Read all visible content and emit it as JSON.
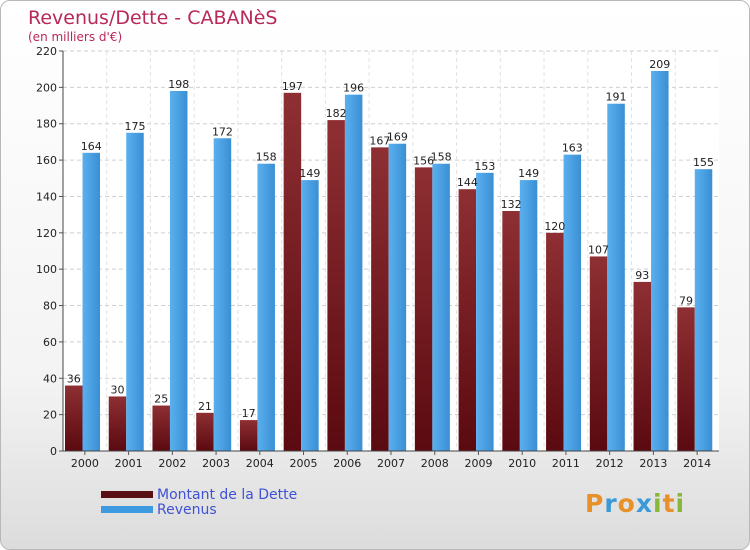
{
  "header": {
    "title": "Revenus/Dette - CABANèS",
    "subtitle": "(en milliers d'€)"
  },
  "chart_data": {
    "type": "bar",
    "categories": [
      "2000",
      "2001",
      "2002",
      "2003",
      "2004",
      "2005",
      "2006",
      "2007",
      "2008",
      "2009",
      "2010",
      "2011",
      "2012",
      "2013",
      "2014"
    ],
    "series": [
      {
        "name": "Montant de la Dette",
        "color": "#7a1e22",
        "values": [
          36,
          30,
          25,
          21,
          17,
          197,
          182,
          167,
          156,
          144,
          132,
          120,
          107,
          93,
          79
        ]
      },
      {
        "name": "Revenus",
        "color": "#3d9ae0",
        "values": [
          164,
          175,
          198,
          172,
          158,
          149,
          196,
          169,
          158,
          153,
          149,
          163,
          191,
          209,
          155
        ]
      }
    ],
    "ylim": [
      0,
      220
    ],
    "yticks": [
      "0",
      "20",
      "40",
      "60",
      "80",
      "100",
      "120",
      "140",
      "160",
      "180",
      "200",
      "220"
    ],
    "grid": true,
    "legend_position": "bottom-left"
  },
  "legend": {
    "items": [
      {
        "label": "Montant de la Dette",
        "color": "#5a0f14"
      },
      {
        "label": "Revenus",
        "color": "#3d9ae0"
      }
    ]
  },
  "logo": {
    "text": "Proxiti",
    "letters": [
      "P",
      "r",
      "o",
      "x",
      "i",
      "t",
      "i"
    ],
    "colors": [
      "#e8902a",
      "#3a9ad8",
      "#e8902a",
      "#3a9ad8",
      "#88b83a",
      "#e8902a",
      "#88b83a"
    ]
  }
}
